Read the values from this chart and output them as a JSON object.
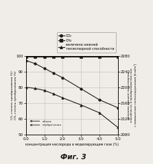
{
  "x": [
    0.0,
    0.5,
    1.0,
    1.5,
    2.0,
    3.0,
    4.0,
    5.0
  ],
  "co2": [
    97,
    95,
    92,
    89,
    86,
    79,
    72,
    67
  ],
  "ch4": [
    99.5,
    99.5,
    99.5,
    99.5,
    99.5,
    99.5,
    99.5,
    99.5
  ],
  "heating": [
    2200,
    2197,
    2192,
    2183,
    2173,
    2155,
    2135,
    2098
  ],
  "xlim": [
    0.0,
    5.0
  ],
  "ylim_left": [
    50,
    100
  ],
  "ylim_right": [
    2080,
    2280
  ],
  "yticks_left": [
    50,
    60,
    70,
    80,
    90,
    100
  ],
  "yticks_right": [
    2080,
    2120,
    2160,
    2200,
    2240,
    2280
  ],
  "xticks": [
    0.0,
    1.0,
    2.0,
    3.0,
    4.0,
    5.0
  ],
  "xtick_labels": [
    "0.0",
    "1.0",
    "2.0",
    "3.0",
    "4.0",
    "5.0"
  ],
  "xlabel": "концентрация кислорода в моделирующем газе (%)",
  "ylabel_left_line1": "CO₂ степень преобразования (%)",
  "ylabel_left_line2": "CH₄ степень преобразования (%)",
  "ylabel_right_line1": "величина нижшей теплотворной",
  "ylabel_right_line2": "способности, в преобразованном газе",
  "ylabel_right_line3": "с повышенным теплосодержанием [kcal/m³]",
  "legend_co2": "CO₂",
  "legend_ch4": "CH₄",
  "legend_heating": "величина нижней\nтеплотворной способности",
  "title": "Фиг. 3",
  "annot_text": "объем\nизобретения",
  "bg_color": "#f0ede8",
  "grid_color": "#bbbbbb",
  "line_color": "#1a1a1a"
}
